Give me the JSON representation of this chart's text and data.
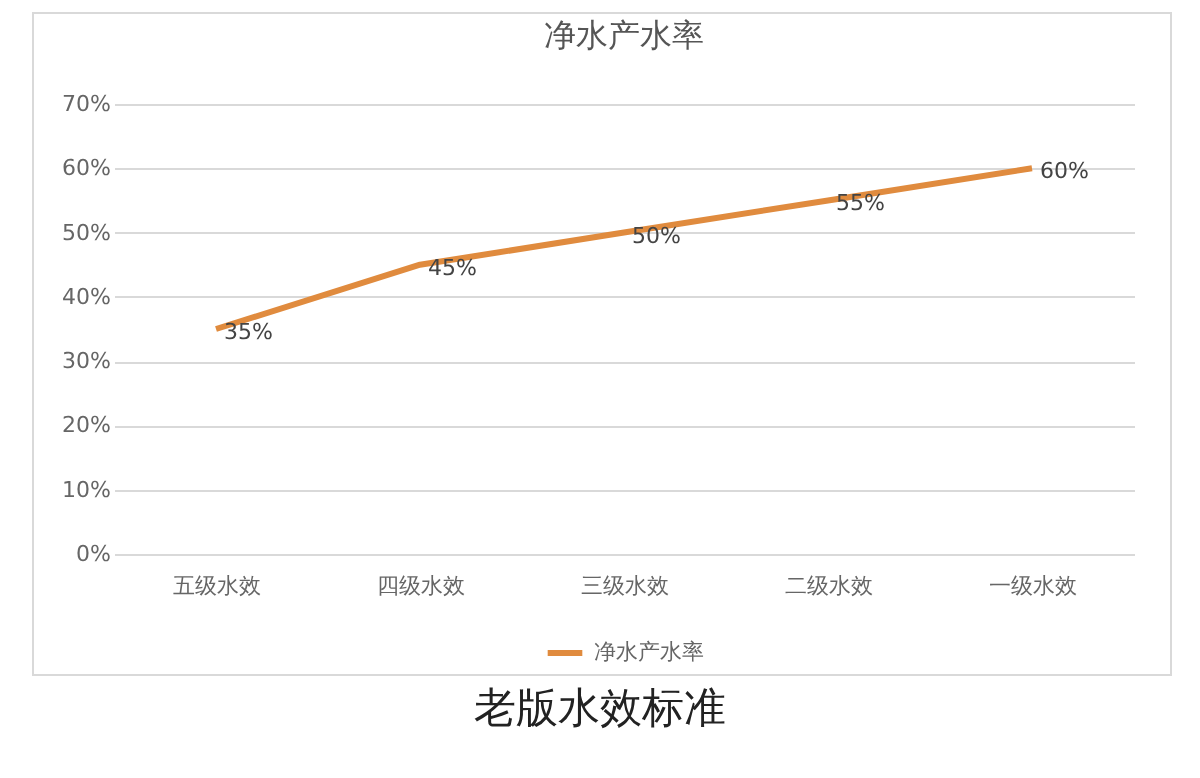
{
  "chart_data": {
    "type": "line",
    "title": "净水产水率",
    "categories": [
      "五级水效",
      "四级水效",
      "三级水效",
      "二级水效",
      "一级水效"
    ],
    "series": [
      {
        "name": "净水产水率",
        "color": "#e08b3e",
        "values": [
          35,
          45,
          50,
          55,
          60
        ],
        "value_labels": [
          "35%",
          "45%",
          "50%",
          "55%",
          "60%"
        ]
      }
    ],
    "ylim": [
      0,
      70
    ],
    "yticks": [
      {
        "value": 0,
        "label": "0%"
      },
      {
        "value": 10,
        "label": "10%"
      },
      {
        "value": 20,
        "label": "20%"
      },
      {
        "value": 30,
        "label": "30%"
      },
      {
        "value": 40,
        "label": "40%"
      },
      {
        "value": 50,
        "label": "50%"
      },
      {
        "value": 60,
        "label": "60%"
      },
      {
        "value": 70,
        "label": "70%"
      }
    ],
    "grid": "y",
    "legend": "bottom",
    "marker": "none",
    "line_style": "solid",
    "annotations": [
      "老版水效标准"
    ]
  }
}
